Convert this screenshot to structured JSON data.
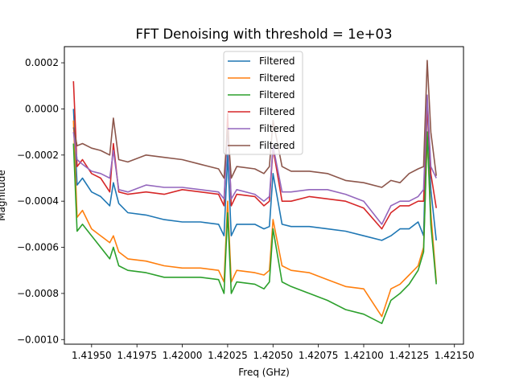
{
  "chart_data": {
    "type": "line",
    "title": "FFT Denoising with threshold = 1e+03",
    "xlabel": "Freq (GHz)",
    "ylabel": "Magnitude",
    "xlim": [
      1.41935,
      1.42155
    ],
    "ylim": [
      -0.00102,
      0.00027
    ],
    "x_ticks": [
      1.4195,
      1.41975,
      1.42,
      1.42025,
      1.4205,
      1.42075,
      1.421,
      1.42125,
      1.4215
    ],
    "x_tick_labels": [
      "1.41950",
      "1.41975",
      "1.42000",
      "1.42025",
      "1.42050",
      "1.42075",
      "1.42100",
      "1.42125",
      "1.42150"
    ],
    "y_ticks": [
      0.0002,
      0.0,
      -0.0002,
      -0.0004,
      -0.0006,
      -0.0008,
      -0.001
    ],
    "y_tick_labels": [
      "0.0002",
      "0.0000",
      "−0.0002",
      "−0.0004",
      "−0.0006",
      "−0.0008",
      "−0.0010"
    ],
    "legend_position": "top-center",
    "grid": false,
    "x": [
      1.4194,
      1.41942,
      1.41945,
      1.4195,
      1.41955,
      1.4196,
      1.41962,
      1.41965,
      1.4197,
      1.4198,
      1.4199,
      1.42,
      1.4201,
      1.4202,
      1.42023,
      1.42025,
      1.42027,
      1.4203,
      1.4204,
      1.42045,
      1.42048,
      1.4205,
      1.42055,
      1.4206,
      1.4207,
      1.4208,
      1.4209,
      1.421,
      1.4211,
      1.42115,
      1.4212,
      1.42125,
      1.4213,
      1.42133,
      1.42135,
      1.42137,
      1.4214
    ],
    "series": [
      {
        "name": "Filtered",
        "color": "#1f77b4",
        "values": [
          0.0,
          -0.00033,
          -0.0003,
          -0.00036,
          -0.00038,
          -0.00042,
          -0.00032,
          -0.00041,
          -0.00045,
          -0.00046,
          -0.00048,
          -0.00049,
          -0.00049,
          -0.0005,
          -0.00055,
          -0.0002,
          -0.00055,
          -0.0005,
          -0.0005,
          -0.00052,
          -0.00051,
          -0.00028,
          -0.0005,
          -0.00051,
          -0.00051,
          -0.00052,
          -0.00053,
          -0.00055,
          -0.00057,
          -0.00055,
          -0.00052,
          -0.00052,
          -0.00049,
          -0.00055,
          3e-05,
          -0.00035,
          -0.00057
        ]
      },
      {
        "name": "Filtered",
        "color": "#ff7f0e",
        "values": [
          -5e-05,
          -0.00047,
          -0.00044,
          -0.00052,
          -0.00055,
          -0.00058,
          -0.00055,
          -0.00062,
          -0.00065,
          -0.00066,
          -0.00068,
          -0.00069,
          -0.00069,
          -0.0007,
          -0.00075,
          -0.0004,
          -0.00075,
          -0.0007,
          -0.00071,
          -0.00072,
          -0.0007,
          -0.00048,
          -0.00068,
          -0.0007,
          -0.00071,
          -0.00074,
          -0.00077,
          -0.00078,
          -0.0009,
          -0.00078,
          -0.00076,
          -0.00072,
          -0.00068,
          -0.0006,
          -0.00012,
          -0.00045,
          -0.00075
        ]
      },
      {
        "name": "Filtered",
        "color": "#2ca02c",
        "values": [
          -0.00015,
          -0.00053,
          -0.0005,
          -0.00055,
          -0.0006,
          -0.00065,
          -0.0006,
          -0.00068,
          -0.0007,
          -0.00071,
          -0.00073,
          -0.00073,
          -0.00073,
          -0.00074,
          -0.0008,
          -0.00045,
          -0.0008,
          -0.00075,
          -0.00076,
          -0.00078,
          -0.00075,
          -0.00052,
          -0.00075,
          -0.00077,
          -0.0008,
          -0.00083,
          -0.00087,
          -0.00089,
          -0.00093,
          -0.00083,
          -0.0008,
          -0.00076,
          -0.0007,
          -0.00062,
          -0.0001,
          -0.0005,
          -0.00076
        ]
      },
      {
        "name": "Filtered",
        "color": "#d62728",
        "values": [
          0.00012,
          -0.00025,
          -0.00022,
          -0.00028,
          -0.0003,
          -0.00036,
          -0.00015,
          -0.00036,
          -0.00037,
          -0.00036,
          -0.00037,
          -0.00035,
          -0.00036,
          -0.00037,
          -0.00042,
          -2e-05,
          -0.00042,
          -0.00037,
          -0.00038,
          -0.00042,
          -0.0004,
          -0.00017,
          -0.0004,
          -0.0004,
          -0.00038,
          -0.00039,
          -0.0004,
          -0.00043,
          -0.00052,
          -0.00045,
          -0.00042,
          -0.00042,
          -0.0004,
          -0.0004,
          2e-05,
          -0.00028,
          -0.00043
        ]
      },
      {
        "name": "Filtered",
        "color": "#9467bd",
        "values": [
          -0.0001,
          -0.00022,
          -0.00024,
          -0.00027,
          -0.00028,
          -0.0003,
          -0.00018,
          -0.00035,
          -0.00036,
          -0.00033,
          -0.00034,
          -0.00034,
          -0.00035,
          -0.00036,
          -0.00039,
          -8e-05,
          -0.00039,
          -0.00035,
          -0.00037,
          -0.0004,
          -0.00038,
          -0.00016,
          -0.00036,
          -0.00036,
          -0.00035,
          -0.00035,
          -0.00037,
          -0.0004,
          -0.0005,
          -0.00042,
          -0.0004,
          -0.0004,
          -0.00038,
          -0.00035,
          6e-05,
          -0.00025,
          -0.0003
        ]
      },
      {
        "name": "Filtered",
        "color": "#8c564b",
        "values": [
          -8e-05,
          -0.00016,
          -0.00015,
          -0.00017,
          -0.00018,
          -0.0002,
          -4e-05,
          -0.00022,
          -0.00023,
          -0.0002,
          -0.00021,
          -0.00022,
          -0.00024,
          -0.00026,
          -0.0003,
          -8e-05,
          -0.0003,
          -0.00025,
          -0.00026,
          -0.00028,
          -0.00025,
          -5e-05,
          -0.00025,
          -0.00027,
          -0.00027,
          -0.00028,
          -0.00031,
          -0.00032,
          -0.00034,
          -0.00031,
          -0.00032,
          -0.00028,
          -0.00026,
          -0.00025,
          0.00021,
          -0.0001,
          -0.00029
        ]
      }
    ]
  }
}
